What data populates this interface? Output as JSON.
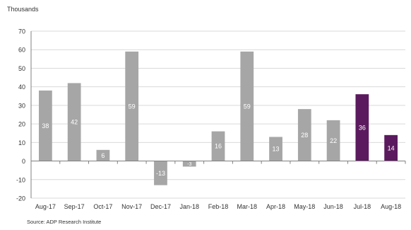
{
  "chart_data": {
    "type": "bar",
    "unit_label": "Thousands",
    "source": "Source: ADP Research Institute",
    "categories": [
      "Aug-17",
      "Sep-17",
      "Oct-17",
      "Nov-17",
      "Dec-17",
      "Jan-18",
      "Feb-18",
      "Mar-18",
      "Apr-18",
      "May-18",
      "Jun-18",
      "Jul-18",
      "Aug-18"
    ],
    "values": [
      38,
      42,
      6,
      59,
      -13,
      -3,
      16,
      59,
      13,
      28,
      22,
      36,
      14
    ],
    "data_labels": [
      "38",
      "42",
      "6",
      "59",
      "-13",
      "-3",
      "16",
      "59",
      "13",
      "28",
      "22",
      "36",
      "14"
    ],
    "highlight_indices": [
      11,
      12
    ],
    "ylim": [
      -20,
      70
    ],
    "yticks": [
      -20,
      -10,
      0,
      10,
      20,
      30,
      40,
      50,
      60,
      70
    ],
    "grid": true,
    "colors": {
      "bar": "#a6a6a6",
      "highlight": "#5b1a5e",
      "grid": "#d9d9d9",
      "axis": "#808080",
      "text": "#333333",
      "label_on_bar": "#ffffff"
    }
  }
}
